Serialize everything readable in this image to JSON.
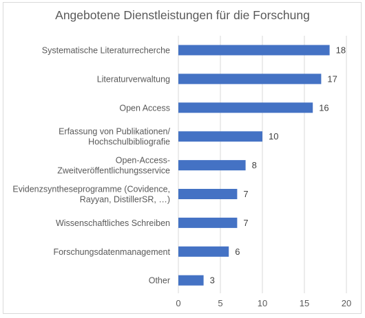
{
  "chart_data": {
    "type": "bar",
    "orientation": "horizontal",
    "title": "Angebotene Dienstleistungen für die Forschung",
    "categories": [
      [
        "Systematische Literaturrecherche"
      ],
      [
        "Literaturverwaltung"
      ],
      [
        "Open Access"
      ],
      [
        "Erfassung von Publikationen/",
        "Hochschulbibliografie"
      ],
      [
        "Open-Access-",
        "Zweitveröffentlichungsservice"
      ],
      [
        "Evidenzsyntheseprogramme (Covidence,",
        "Rayyan, DistillerSR, …)"
      ],
      [
        "Wissenschaftliches Schreiben"
      ],
      [
        "Forschungsdatenmanagement"
      ],
      [
        "Other"
      ]
    ],
    "values": [
      18,
      17,
      16,
      10,
      8,
      7,
      7,
      6,
      3
    ],
    "xlim": [
      0,
      20
    ],
    "xticks": [
      0,
      5,
      10,
      15,
      20
    ],
    "grid": true,
    "legend": "none",
    "bar_color": "#4472c4",
    "grid_color": "#d9d9d9",
    "text_color": "#595959"
  }
}
